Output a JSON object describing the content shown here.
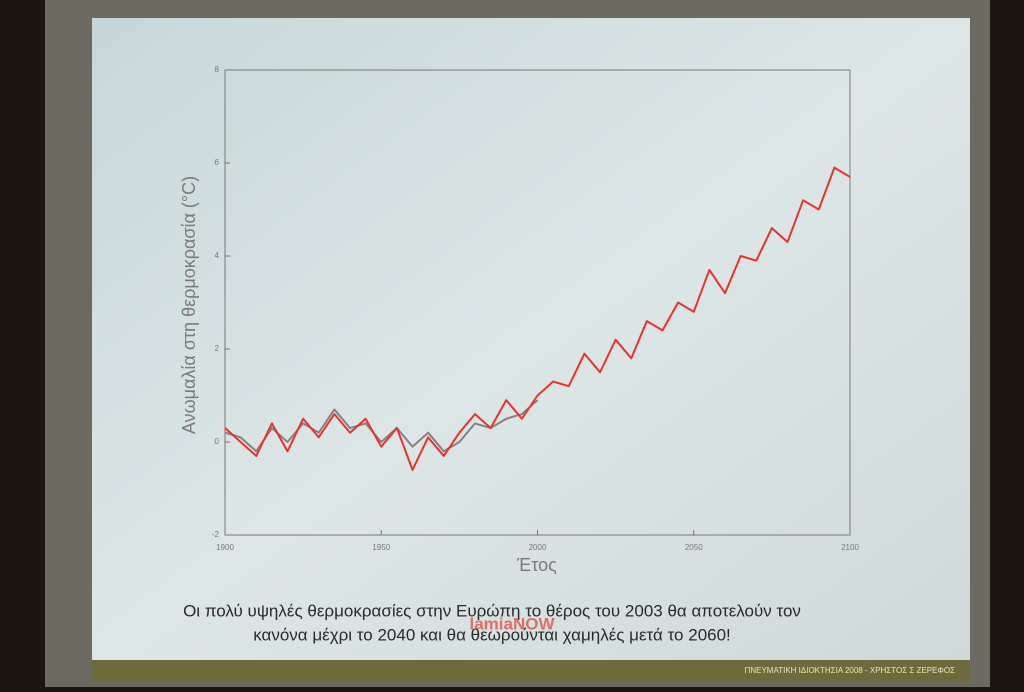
{
  "chart_data": {
    "type": "line",
    "x_label": "Έτος",
    "y_label": "Ανωμαλία στη θερμοκρασία (°C)",
    "x": [
      1900,
      1905,
      1910,
      1915,
      1920,
      1925,
      1930,
      1935,
      1940,
      1945,
      1950,
      1955,
      1960,
      1965,
      1970,
      1975,
      1980,
      1985,
      1990,
      1995,
      2000,
      2005,
      2010,
      2015,
      2020,
      2025,
      2030,
      2035,
      2040,
      2045,
      2050,
      2055,
      2060,
      2065,
      2070,
      2075,
      2080,
      2085,
      2090,
      2095,
      2100
    ],
    "series": [
      {
        "color": "#e8332a",
        "values": [
          0.3,
          0,
          -0.3,
          0.4,
          -0.2,
          0.5,
          0.1,
          0.6,
          0.2,
          0.5,
          -0.1,
          0.3,
          -0.6,
          0.1,
          -0.3,
          0.2,
          0.6,
          0.3,
          0.9,
          0.5,
          1.0,
          1.3,
          1.2,
          1.9,
          1.5,
          2.2,
          1.8,
          2.6,
          2.4,
          3.0,
          2.8,
          3.7,
          3.2,
          4.0,
          3.9,
          4.6,
          4.3,
          5.2,
          5.0,
          5.9,
          5.7
        ]
      },
      {
        "color": "#8a7f80",
        "values": [
          0.2,
          0.1,
          -0.2,
          0.3,
          0.0,
          0.4,
          0.2,
          0.7,
          0.3,
          0.4,
          0.0,
          0.3,
          -0.1,
          0.2,
          -0.2,
          0.0,
          0.4,
          0.3,
          0.5,
          0.6,
          0.9,
          null,
          null,
          null,
          null,
          null,
          null,
          null,
          null,
          null,
          null,
          null,
          null,
          null,
          null,
          null,
          null,
          null,
          null,
          null,
          null
        ]
      }
    ],
    "xlim": [
      1900,
      2100
    ],
    "xticks": [
      1900,
      1950,
      2000,
      2050,
      2100
    ],
    "ylim": [
      -2,
      8
    ],
    "yticks": [
      -2,
      0,
      2,
      4,
      6,
      8
    ]
  },
  "slide": {
    "caption_line1": "Οι πολύ υψηλές θερμοκρασίες στην Ευρώπη το θέρος του 2003 θα αποτελούν τον",
    "caption_line2": "κανόνα μέχρι το 2040 και θα θεωρούνται χαμηλές μετά το 2060!",
    "footer": "ΠΝΕΥΜΑΤΙΚΗ ΙΔΙΟΚΤΗΣΙΑ   2008 - ΧΡΗΣΤΟΣ Σ ΖΕΡΕΦΟΣ",
    "watermark": "lamiaNOW"
  }
}
